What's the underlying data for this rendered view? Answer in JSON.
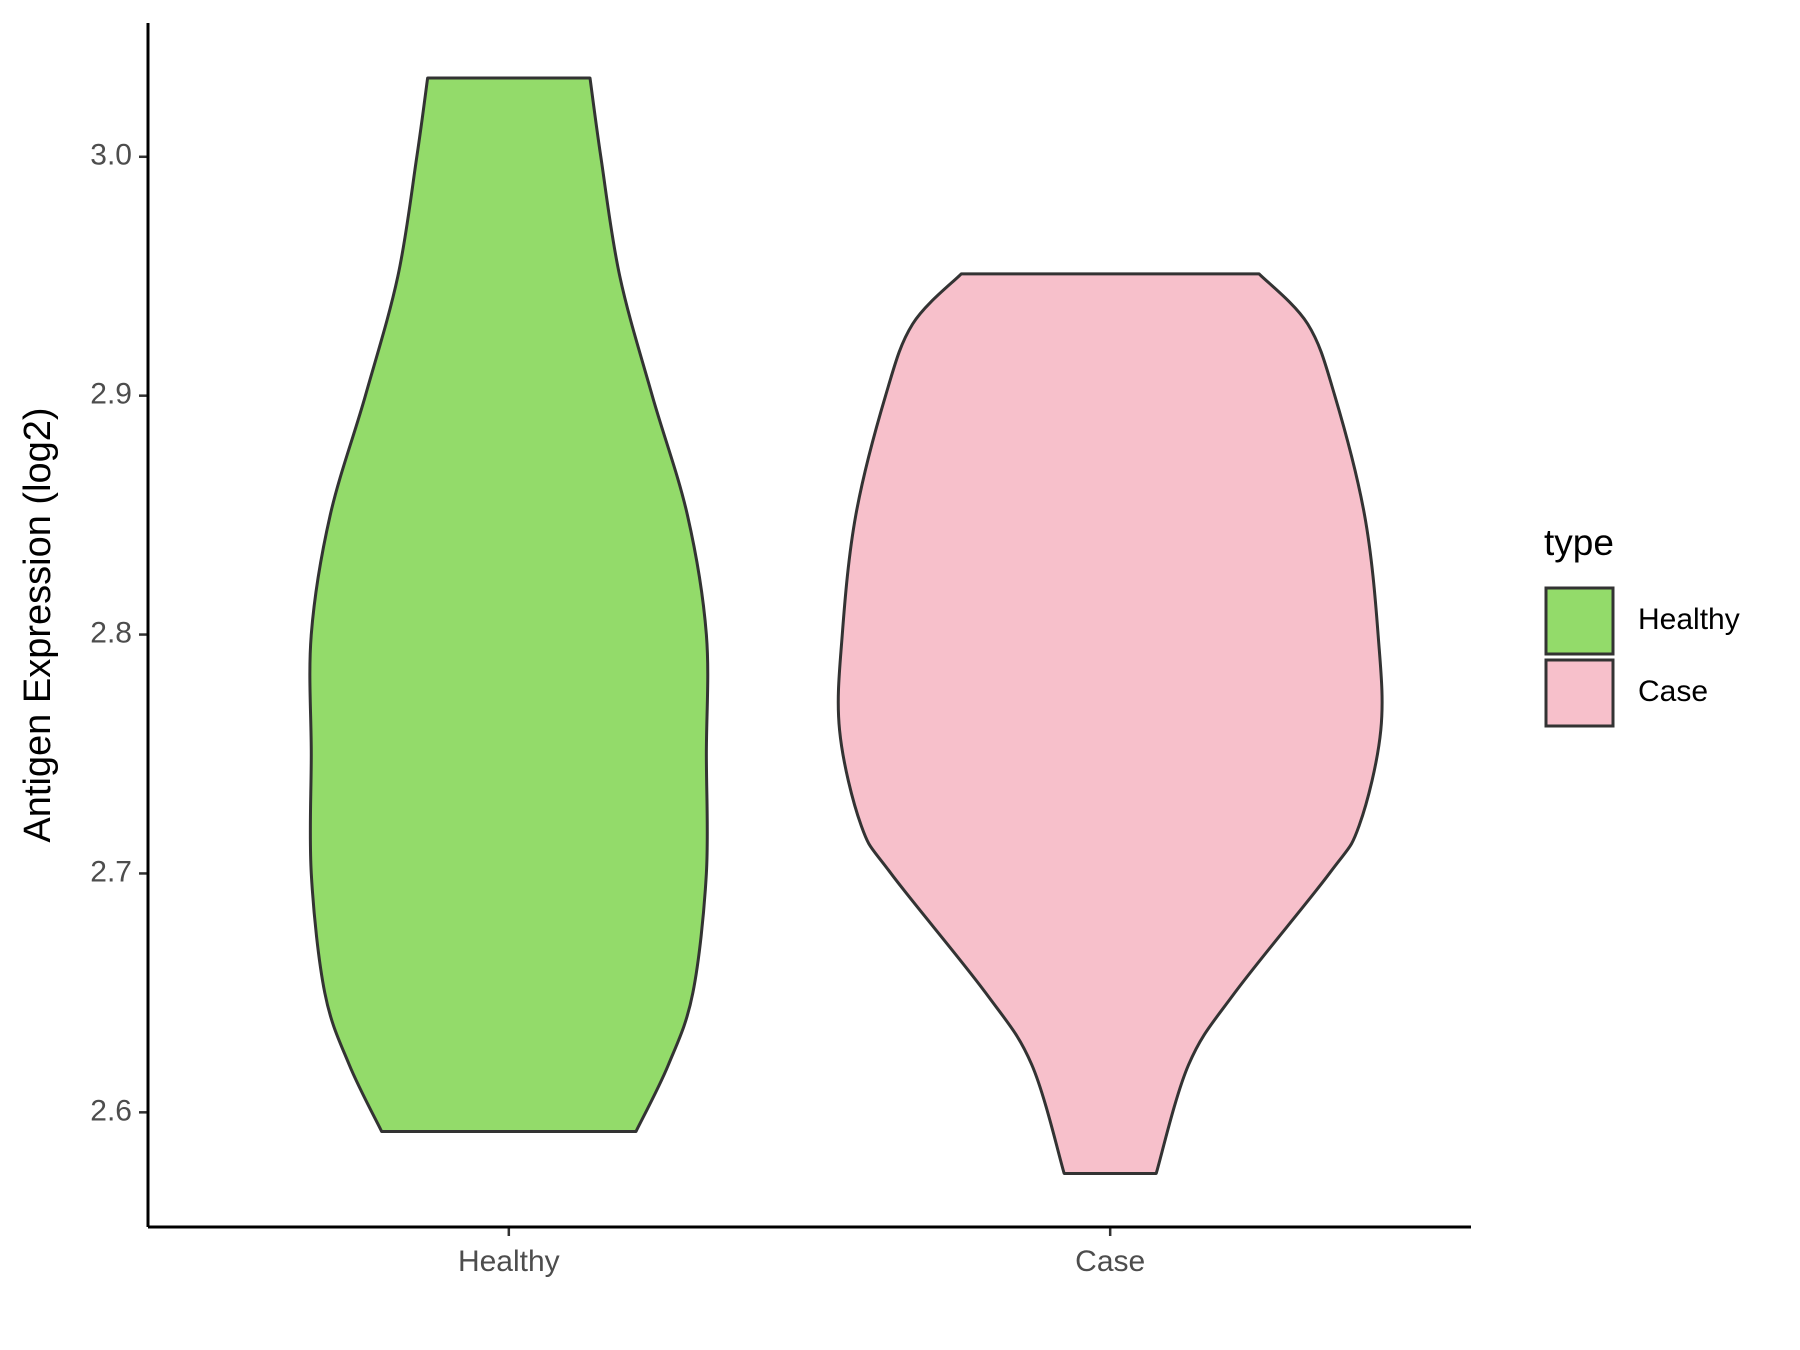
{
  "chart_data": {
    "type": "violin",
    "ylabel": "Antigen Expression (log2)",
    "legend_title": "type",
    "categories": [
      "Healthy",
      "Case"
    ],
    "ylim": [
      2.552,
      3.056
    ],
    "yticks": [
      2.6,
      2.7,
      2.8,
      2.9,
      {
        "value": 3,
        "label": "3.0"
      }
    ],
    "series": [
      {
        "name": "Healthy",
        "color": "#93DB6A",
        "y": [
          3.033,
          3.0,
          2.95,
          2.9,
          2.85,
          2.8,
          2.75,
          2.7,
          2.65,
          2.62,
          2.592
        ],
        "width": [
          0.3,
          0.34,
          0.41,
          0.53,
          0.66,
          0.73,
          0.73,
          0.73,
          0.68,
          0.59,
          0.47
        ]
      },
      {
        "name": "Case",
        "color": "#F7C0CB",
        "y": [
          2.951,
          2.93,
          2.9,
          2.85,
          2.8,
          2.76,
          2.72,
          2.7,
          2.65,
          2.62,
          2.5744
        ],
        "width": [
          0.55,
          0.73,
          0.83,
          0.94,
          0.99,
          1.0,
          0.92,
          0.81,
          0.46,
          0.29,
          0.17
        ]
      }
    ]
  }
}
